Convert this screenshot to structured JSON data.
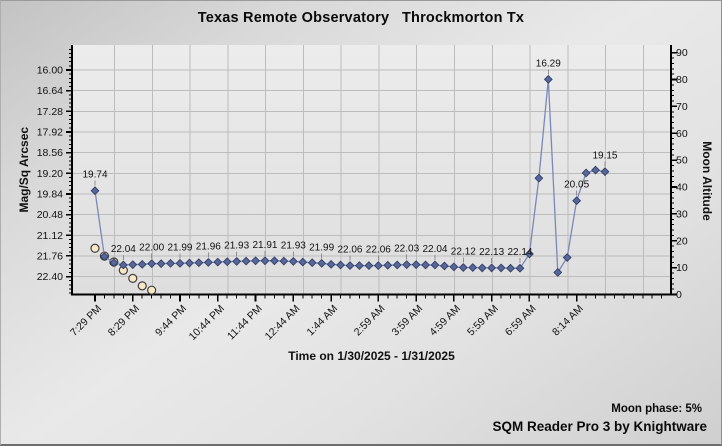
{
  "window": {
    "title": "Texas Remote Observatory   Throckmorton Tx"
  },
  "footer": {
    "moon_phase": "Moon phase: 5%",
    "branding": "SQM Reader Pro 3 by Knightware"
  },
  "colors": {
    "sqm_line": "#7a88b8",
    "sqm_marker_fill": "#56679c",
    "sqm_marker_stroke": "#333f66",
    "moon_marker_fill": "#f9e8c5",
    "moon_marker_stroke": "#3f3f3f",
    "gridline": "#bcbcbc",
    "axis": "#000000",
    "label_leader": "#8f8f8f",
    "text": "#111111"
  },
  "chart_data": {
    "type": "line",
    "title": "Texas Remote Observatory   Throckmorton Tx",
    "x_axis": {
      "title": "Time on 1/30/2025 - 1/31/2025",
      "range_minutes": [
        0,
        912
      ],
      "minor_tick_interval_minutes": 15,
      "gridlines": "hourly starting 8:00 PM (minute 31), every 60 min",
      "tick_labels": [
        {
          "t": 0,
          "label": "7:29 PM"
        },
        {
          "t": 60,
          "label": "8:29 PM"
        },
        {
          "t": 135,
          "label": "9:44 PM"
        },
        {
          "t": 195,
          "label": "10:44 PM"
        },
        {
          "t": 255,
          "label": "11:44 PM"
        },
        {
          "t": 315,
          "label": "12:44 AM"
        },
        {
          "t": 375,
          "label": "1:44 AM"
        },
        {
          "t": 450,
          "label": "2:59 AM"
        },
        {
          "t": 510,
          "label": "3:59 AM"
        },
        {
          "t": 570,
          "label": "4:59 AM"
        },
        {
          "t": 630,
          "label": "5:59 AM"
        },
        {
          "t": 690,
          "label": "6:59 AM"
        },
        {
          "t": 765,
          "label": "8:14 AM"
        }
      ]
    },
    "y_left": {
      "title": "Mag/Sq Arcsec",
      "inverted": true,
      "ticks": [
        "16.00",
        "16.64",
        "17.28",
        "17.92",
        "18.56",
        "19.20",
        "19.84",
        "20.48",
        "21.12",
        "21.76",
        "22.40"
      ],
      "tick_step": 0.64
    },
    "y_right": {
      "title": "Moon Altitude",
      "min": 0,
      "max": 90,
      "tick_step": 10,
      "minor_step": 2,
      "ticks": [
        "90",
        "80",
        "70",
        "60",
        "50",
        "40",
        "30",
        "20",
        "10",
        "0"
      ]
    },
    "series": [
      {
        "name": "sqm-mag",
        "marker": "diamond",
        "points": [
          {
            "t": 0,
            "v": 19.74,
            "label": "19.74"
          },
          {
            "t": 15,
            "v": 21.78
          },
          {
            "t": 30,
            "v": 21.97
          },
          {
            "t": 45,
            "v": 22.04,
            "label": "22.04"
          },
          {
            "t": 60,
            "v": 22.03
          },
          {
            "t": 75,
            "v": 22.02
          },
          {
            "t": 90,
            "v": 22.0,
            "label": "22.00"
          },
          {
            "t": 105,
            "v": 22.0
          },
          {
            "t": 120,
            "v": 21.99
          },
          {
            "t": 135,
            "v": 21.99,
            "label": "21.99"
          },
          {
            "t": 150,
            "v": 21.98
          },
          {
            "t": 165,
            "v": 21.97
          },
          {
            "t": 180,
            "v": 21.96,
            "label": "21.96"
          },
          {
            "t": 195,
            "v": 21.95
          },
          {
            "t": 210,
            "v": 21.94
          },
          {
            "t": 225,
            "v": 21.93,
            "label": "21.93"
          },
          {
            "t": 240,
            "v": 21.92
          },
          {
            "t": 255,
            "v": 21.91
          },
          {
            "t": 270,
            "v": 21.91,
            "label": "21.91"
          },
          {
            "t": 285,
            "v": 21.91
          },
          {
            "t": 300,
            "v": 21.92
          },
          {
            "t": 315,
            "v": 21.93,
            "label": "21.93"
          },
          {
            "t": 330,
            "v": 21.95
          },
          {
            "t": 345,
            "v": 21.97
          },
          {
            "t": 360,
            "v": 21.99,
            "label": "21.99"
          },
          {
            "t": 375,
            "v": 22.02
          },
          {
            "t": 390,
            "v": 22.04
          },
          {
            "t": 405,
            "v": 22.06,
            "label": "22.06"
          },
          {
            "t": 420,
            "v": 22.06
          },
          {
            "t": 435,
            "v": 22.06
          },
          {
            "t": 450,
            "v": 22.06,
            "label": "22.06"
          },
          {
            "t": 465,
            "v": 22.05
          },
          {
            "t": 480,
            "v": 22.04
          },
          {
            "t": 495,
            "v": 22.03,
            "label": "22.03"
          },
          {
            "t": 510,
            "v": 22.03
          },
          {
            "t": 525,
            "v": 22.04
          },
          {
            "t": 540,
            "v": 22.04,
            "label": "22.04"
          },
          {
            "t": 555,
            "v": 22.07
          },
          {
            "t": 570,
            "v": 22.1
          },
          {
            "t": 585,
            "v": 22.12,
            "label": "22.12"
          },
          {
            "t": 600,
            "v": 22.12
          },
          {
            "t": 615,
            "v": 22.13
          },
          {
            "t": 630,
            "v": 22.13,
            "label": "22.13"
          },
          {
            "t": 645,
            "v": 22.13
          },
          {
            "t": 660,
            "v": 22.14
          },
          {
            "t": 675,
            "v": 22.14,
            "label": "22.14"
          },
          {
            "t": 690,
            "v": 21.7
          },
          {
            "t": 705,
            "v": 19.35
          },
          {
            "t": 720,
            "v": 16.29,
            "label": "16.29"
          },
          {
            "t": 735,
            "v": 22.27
          },
          {
            "t": 750,
            "v": 21.81
          },
          {
            "t": 765,
            "v": 20.05,
            "label": "20.05"
          },
          {
            "t": 780,
            "v": 19.19
          },
          {
            "t": 795,
            "v": 19.1
          },
          {
            "t": 810,
            "v": 19.15,
            "label": "19.15"
          }
        ]
      },
      {
        "name": "moon-altitude",
        "marker": "circle",
        "points": [
          {
            "t": 0,
            "alt": 17.2
          },
          {
            "t": 15,
            "alt": 14.3
          },
          {
            "t": 30,
            "alt": 12.1
          },
          {
            "t": 45,
            "alt": 9.0
          },
          {
            "t": 60,
            "alt": 6.0
          },
          {
            "t": 75,
            "alt": 3.2
          },
          {
            "t": 90,
            "alt": 1.6
          }
        ]
      }
    ]
  }
}
